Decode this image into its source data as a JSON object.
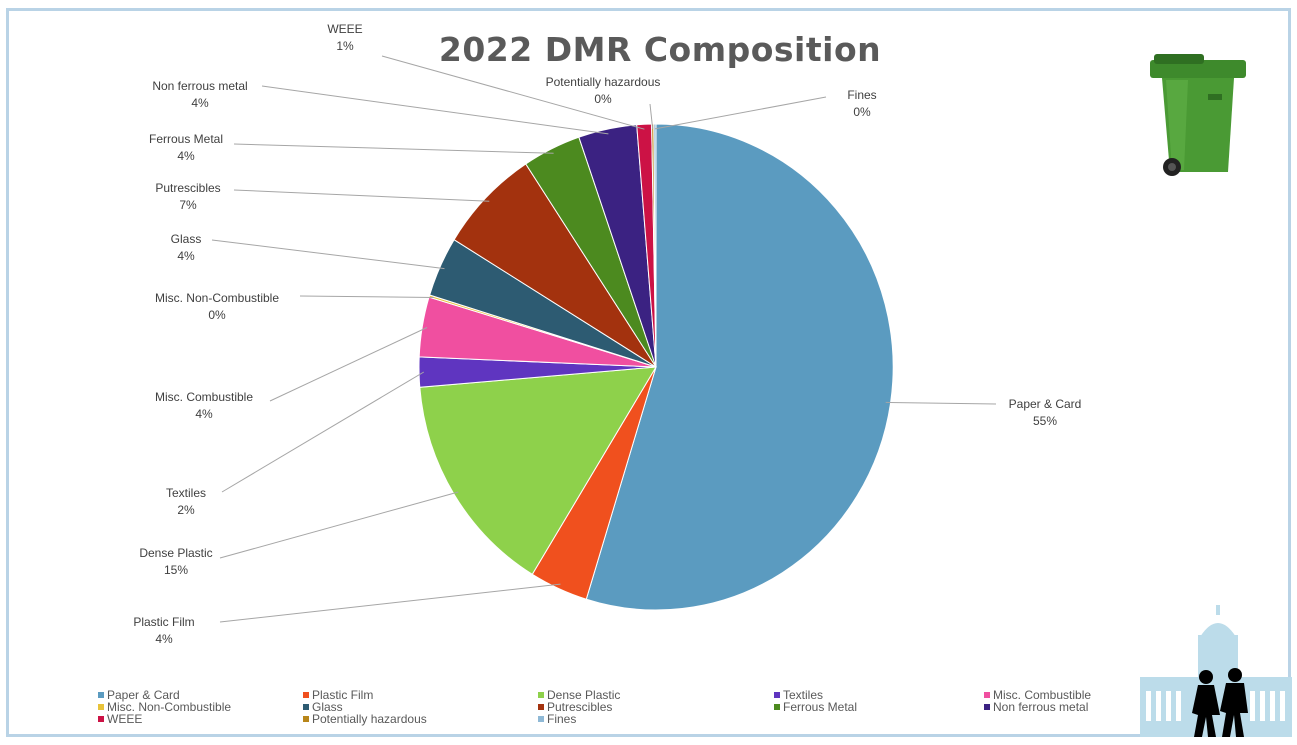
{
  "chart_data": {
    "type": "pie",
    "title": "2022 DMR Composition",
    "slices": [
      {
        "name": "Paper & Card",
        "value": 55,
        "label": "55%",
        "color": "#5b9bc0"
      },
      {
        "name": "Plastic Film",
        "value": 4,
        "label": "4%",
        "color": "#f0501e"
      },
      {
        "name": "Dense Plastic",
        "value": 15,
        "label": "15%",
        "color": "#8ed14b"
      },
      {
        "name": "Textiles",
        "value": 2,
        "label": "2%",
        "color": "#5f35c0"
      },
      {
        "name": "Misc. Combustible",
        "value": 4,
        "label": "4%",
        "color": "#f04fa0"
      },
      {
        "name": "Misc. Non-Combustible",
        "value": 0.15,
        "label": "0%",
        "color": "#e8c33a"
      },
      {
        "name": "Glass",
        "value": 4,
        "label": "4%",
        "color": "#2d5b72"
      },
      {
        "name": "Putrescibles",
        "value": 7,
        "label": "7%",
        "color": "#a3320e"
      },
      {
        "name": "Ferrous Metal",
        "value": 4,
        "label": "4%",
        "color": "#4c8a1f"
      },
      {
        "name": "Non ferrous metal",
        "value": 4,
        "label": "4%",
        "color": "#3b2282"
      },
      {
        "name": "WEEE",
        "value": 1,
        "label": "1%",
        "color": "#cc1245"
      },
      {
        "name": "Potentially hazardous",
        "value": 0.15,
        "label": "0%",
        "color": "#b8861a"
      },
      {
        "name": "Fines",
        "value": 0.15,
        "label": "0%",
        "color": "#8fb9d6"
      }
    ],
    "legend_position": "bottom"
  },
  "icons": {
    "bin": "green-wheelie-bin-icon",
    "building": "city-hall-silhouette-icon"
  }
}
